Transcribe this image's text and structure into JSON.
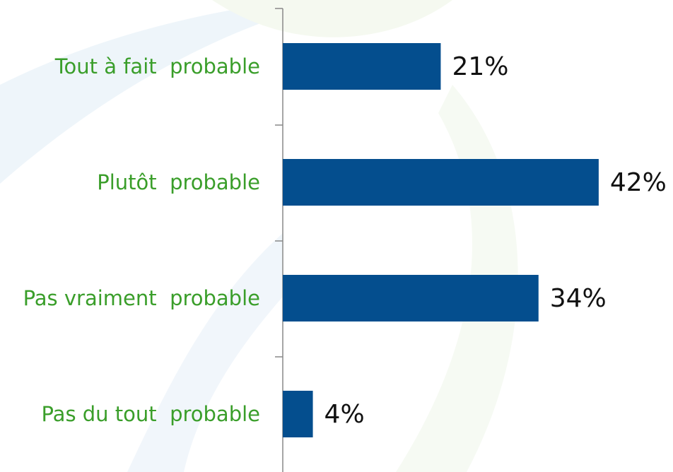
{
  "chart_data": {
    "type": "bar",
    "orientation": "horizontal",
    "categories": [
      "Tout à fait  probable",
      "Plutôt  probable",
      "Pas vraiment  probable",
      "Pas du tout  probable"
    ],
    "values": [
      21,
      42,
      34,
      4
    ],
    "value_labels": [
      "21%",
      "42%",
      "34%",
      "4%"
    ],
    "color": "#044e8e",
    "label_color": "#3a9e2a"
  }
}
